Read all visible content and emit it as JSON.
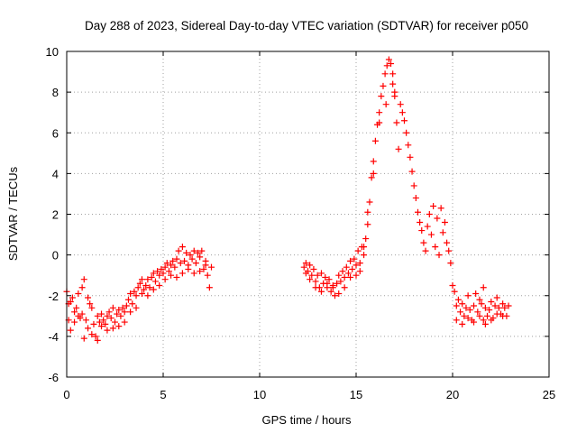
{
  "chart_data": {
    "type": "scatter",
    "title": "Day 288 of 2023, Sidereal Day-to-day VTEC variation (SDTVAR) for receiver p050",
    "xlabel": "GPS time / hours",
    "ylabel": "SDTVAR / TECUs",
    "xlim": [
      0,
      25
    ],
    "ylim": [
      -6,
      10
    ],
    "xticks": [
      0,
      5,
      10,
      15,
      20,
      25
    ],
    "yticks": [
      -6,
      -4,
      -2,
      0,
      2,
      4,
      6,
      8,
      10
    ],
    "grid": true,
    "marker": "+",
    "color": "#ff0000",
    "series": [
      {
        "name": "SDTVAR",
        "points": [
          [
            0.0,
            -1.8
          ],
          [
            0.1,
            -2.4
          ],
          [
            0.2,
            -2.3
          ],
          [
            0.3,
            -2.1
          ],
          [
            0.4,
            -2.8
          ],
          [
            0.5,
            -2.6
          ],
          [
            0.6,
            -3.0
          ],
          [
            0.7,
            -3.1
          ],
          [
            0.8,
            -1.6
          ],
          [
            0.9,
            -1.2
          ],
          [
            1.0,
            -3.2
          ],
          [
            1.1,
            -3.6
          ],
          [
            1.2,
            -2.4
          ],
          [
            1.3,
            -2.6
          ],
          [
            1.4,
            -3.4
          ],
          [
            1.5,
            -4.0
          ],
          [
            1.6,
            -3.0
          ],
          [
            1.7,
            -3.3
          ],
          [
            1.8,
            -3.5
          ],
          [
            1.9,
            -3.2
          ],
          [
            2.0,
            -3.4
          ],
          [
            2.1,
            -3.0
          ],
          [
            2.2,
            -2.8
          ],
          [
            2.3,
            -3.1
          ],
          [
            2.4,
            -3.6
          ],
          [
            2.5,
            -3.3
          ],
          [
            2.6,
            -2.9
          ],
          [
            2.7,
            -2.7
          ],
          [
            2.8,
            -3.0
          ],
          [
            2.9,
            -2.6
          ],
          [
            3.0,
            -2.8
          ],
          [
            3.1,
            -2.5
          ],
          [
            3.2,
            -2.2
          ],
          [
            3.3,
            -1.9
          ],
          [
            3.4,
            -2.4
          ],
          [
            3.5,
            -1.8
          ],
          [
            3.6,
            -2.0
          ],
          [
            3.7,
            -1.6
          ],
          [
            3.8,
            -1.4
          ],
          [
            3.9,
            -1.9
          ],
          [
            4.0,
            -1.7
          ],
          [
            4.1,
            -1.5
          ],
          [
            4.2,
            -1.2
          ],
          [
            4.3,
            -1.6
          ],
          [
            4.4,
            -1.1
          ],
          [
            4.5,
            -0.9
          ],
          [
            4.6,
            -1.3
          ],
          [
            4.7,
            -0.8
          ],
          [
            4.8,
            -1.0
          ],
          [
            4.9,
            -0.7
          ],
          [
            5.0,
            -0.9
          ],
          [
            5.1,
            -0.6
          ],
          [
            5.2,
            -0.4
          ],
          [
            5.3,
            -0.8
          ],
          [
            5.4,
            -0.5
          ],
          [
            5.5,
            -0.3
          ],
          [
            5.6,
            -0.6
          ],
          [
            5.7,
            -0.2
          ],
          [
            5.8,
            0.2
          ],
          [
            5.9,
            -0.4
          ],
          [
            6.0,
            0.4
          ],
          [
            6.1,
            -0.3
          ],
          [
            6.2,
            0.1
          ],
          [
            6.3,
            -0.5
          ],
          [
            6.4,
            0.0
          ],
          [
            6.5,
            -0.2
          ],
          [
            6.6,
            0.2
          ],
          [
            6.7,
            -0.4
          ],
          [
            6.8,
            0.1
          ],
          [
            6.9,
            -0.1
          ],
          [
            7.0,
            0.2
          ],
          [
            7.1,
            -0.7
          ],
          [
            7.2,
            -0.3
          ],
          [
            7.3,
            -1.0
          ],
          [
            7.4,
            -1.6
          ],
          [
            7.5,
            -0.6
          ],
          [
            0.1,
            -3.2
          ],
          [
            0.2,
            -3.7
          ],
          [
            0.4,
            -3.3
          ],
          [
            0.6,
            -1.9
          ],
          [
            0.8,
            -2.9
          ],
          [
            0.9,
            -4.1
          ],
          [
            1.1,
            -2.1
          ],
          [
            1.3,
            -3.9
          ],
          [
            1.6,
            -4.2
          ],
          [
            1.8,
            -2.9
          ],
          [
            2.1,
            -3.7
          ],
          [
            2.4,
            -2.6
          ],
          [
            2.7,
            -3.5
          ],
          [
            3.0,
            -3.3
          ],
          [
            3.3,
            -2.8
          ],
          [
            3.6,
            -2.6
          ],
          [
            3.9,
            -1.2
          ],
          [
            4.2,
            -2.0
          ],
          [
            4.5,
            -1.7
          ],
          [
            4.8,
            -1.5
          ],
          [
            5.1,
            -1.2
          ],
          [
            5.4,
            -1.0
          ],
          [
            5.7,
            -1.1
          ],
          [
            6.0,
            -0.9
          ],
          [
            6.3,
            -0.7
          ],
          [
            6.6,
            -0.9
          ],
          [
            6.9,
            -0.8
          ],
          [
            7.2,
            -0.5
          ],
          [
            12.3,
            -0.6
          ],
          [
            12.4,
            -0.4
          ],
          [
            12.5,
            -0.8
          ],
          [
            12.6,
            -0.5
          ],
          [
            12.7,
            -1.0
          ],
          [
            12.8,
            -0.7
          ],
          [
            12.9,
            -1.3
          ],
          [
            13.0,
            -1.0
          ],
          [
            13.1,
            -1.6
          ],
          [
            13.2,
            -0.9
          ],
          [
            13.3,
            -1.4
          ],
          [
            13.4,
            -1.1
          ],
          [
            13.5,
            -1.6
          ],
          [
            13.6,
            -1.2
          ],
          [
            13.7,
            -1.8
          ],
          [
            13.8,
            -1.5
          ],
          [
            13.9,
            -2.0
          ],
          [
            14.0,
            -1.4
          ],
          [
            14.1,
            -1.0
          ],
          [
            14.2,
            -1.3
          ],
          [
            14.3,
            -0.8
          ],
          [
            14.4,
            -1.1
          ],
          [
            14.5,
            -0.6
          ],
          [
            14.6,
            -0.9
          ],
          [
            14.7,
            -0.3
          ],
          [
            14.8,
            -0.7
          ],
          [
            14.9,
            -0.2
          ],
          [
            15.0,
            -0.5
          ],
          [
            15.1,
            0.2
          ],
          [
            15.2,
            -0.4
          ],
          [
            15.3,
            0.4
          ],
          [
            15.4,
            0.0
          ],
          [
            15.5,
            0.8
          ],
          [
            15.6,
            1.5
          ],
          [
            15.7,
            2.6
          ],
          [
            15.8,
            3.8
          ],
          [
            15.9,
            4.6
          ],
          [
            16.0,
            5.6
          ],
          [
            16.1,
            6.4
          ],
          [
            16.2,
            7.0
          ],
          [
            16.3,
            7.8
          ],
          [
            16.4,
            8.3
          ],
          [
            16.5,
            8.9
          ],
          [
            16.6,
            9.3
          ],
          [
            16.7,
            9.6
          ],
          [
            16.8,
            9.4
          ],
          [
            16.9,
            8.4
          ],
          [
            17.0,
            7.8
          ],
          [
            17.1,
            6.5
          ],
          [
            17.2,
            5.2
          ],
          [
            17.3,
            7.4
          ],
          [
            17.4,
            7.0
          ],
          [
            17.5,
            6.6
          ],
          [
            17.6,
            6.0
          ],
          [
            17.7,
            5.4
          ],
          [
            17.8,
            4.8
          ],
          [
            17.9,
            4.1
          ],
          [
            18.0,
            3.4
          ],
          [
            18.1,
            2.8
          ],
          [
            18.2,
            2.1
          ],
          [
            18.3,
            1.6
          ],
          [
            18.4,
            1.2
          ],
          [
            18.5,
            0.6
          ],
          [
            18.6,
            0.2
          ],
          [
            18.7,
            1.4
          ],
          [
            18.8,
            2.0
          ],
          [
            18.9,
            1.0
          ],
          [
            19.0,
            2.4
          ],
          [
            19.1,
            0.4
          ],
          [
            19.2,
            1.8
          ],
          [
            19.3,
            0.0
          ],
          [
            19.4,
            2.3
          ],
          [
            19.5,
            1.1
          ],
          [
            19.6,
            1.6
          ],
          [
            19.7,
            0.6
          ],
          [
            19.8,
            0.2
          ],
          [
            19.9,
            -0.4
          ],
          [
            16.9,
            8.9
          ],
          [
            17.0,
            8.0
          ],
          [
            16.55,
            7.4
          ],
          [
            16.2,
            6.5
          ],
          [
            15.9,
            4.0
          ],
          [
            15.6,
            2.1
          ],
          [
            15.4,
            0.4
          ],
          [
            15.2,
            -0.8
          ],
          [
            15.0,
            -1.0
          ],
          [
            14.7,
            -1.1
          ],
          [
            14.4,
            -1.6
          ],
          [
            14.1,
            -1.9
          ],
          [
            13.8,
            -1.6
          ],
          [
            13.5,
            -1.4
          ],
          [
            13.2,
            -1.8
          ],
          [
            12.9,
            -1.6
          ],
          [
            12.6,
            -1.2
          ],
          [
            12.4,
            -0.9
          ],
          [
            20.0,
            -1.5
          ],
          [
            20.1,
            -1.8
          ],
          [
            20.2,
            -2.5
          ],
          [
            20.3,
            -2.2
          ],
          [
            20.4,
            -2.8
          ],
          [
            20.5,
            -2.4
          ],
          [
            20.6,
            -3.0
          ],
          [
            20.7,
            -2.6
          ],
          [
            20.8,
            -3.1
          ],
          [
            20.9,
            -2.7
          ],
          [
            21.0,
            -3.2
          ],
          [
            21.1,
            -2.5
          ],
          [
            21.2,
            -1.9
          ],
          [
            21.3,
            -2.8
          ],
          [
            21.4,
            -3.0
          ],
          [
            21.5,
            -2.4
          ],
          [
            21.6,
            -3.2
          ],
          [
            21.7,
            -2.6
          ],
          [
            21.8,
            -3.0
          ],
          [
            21.9,
            -2.7
          ],
          [
            22.0,
            -2.3
          ],
          [
            22.1,
            -3.1
          ],
          [
            22.2,
            -2.5
          ],
          [
            22.3,
            -2.9
          ],
          [
            22.4,
            -2.6
          ],
          [
            22.5,
            -2.9
          ],
          [
            22.6,
            -3.0
          ],
          [
            22.7,
            -2.6
          ],
          [
            22.8,
            -3.0
          ],
          [
            22.9,
            -2.5
          ],
          [
            20.2,
            -3.2
          ],
          [
            20.5,
            -3.4
          ],
          [
            20.8,
            -2.0
          ],
          [
            21.1,
            -3.3
          ],
          [
            21.4,
            -2.2
          ],
          [
            21.7,
            -3.4
          ],
          [
            22.0,
            -3.2
          ],
          [
            22.3,
            -2.1
          ],
          [
            22.6,
            -2.4
          ],
          [
            21.6,
            -1.6
          ]
        ]
      }
    ]
  }
}
